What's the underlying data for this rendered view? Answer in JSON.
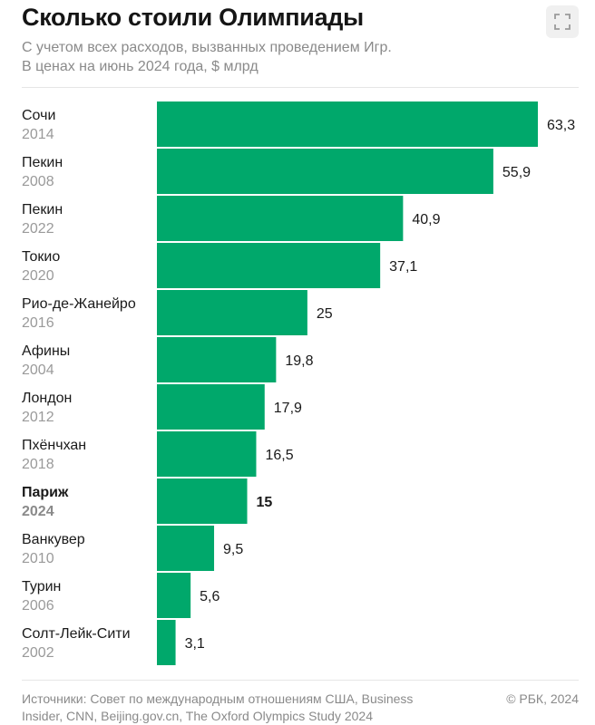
{
  "header": {
    "title": "Сколько стоили Олимпиады",
    "subtitle_line1": "С учетом всех расходов, вызванных проведением Игр.",
    "subtitle_line2": "В ценах на июнь 2024 года, $ млрд",
    "expand_icon": "expand-icon"
  },
  "chart_data": {
    "type": "bar",
    "orientation": "horizontal",
    "categories": [
      {
        "city": "Сочи",
        "year": "2014"
      },
      {
        "city": "Пекин",
        "year": "2008"
      },
      {
        "city": "Пекин",
        "year": "2022"
      },
      {
        "city": "Токио",
        "year": "2020"
      },
      {
        "city": "Рио-де-Жанейро",
        "year": "2016"
      },
      {
        "city": "Афины",
        "year": "2004"
      },
      {
        "city": "Лондон",
        "year": "2012"
      },
      {
        "city": "Пхёнчхан",
        "year": "2018"
      },
      {
        "city": "Париж",
        "year": "2024",
        "highlight": true
      },
      {
        "city": "Ванкувер",
        "year": "2010"
      },
      {
        "city": "Турин",
        "year": "2006"
      },
      {
        "city": "Солт-Лейк-Сити",
        "year": "2002"
      }
    ],
    "values": [
      63.3,
      55.9,
      40.9,
      37.1,
      25,
      19.8,
      17.9,
      16.5,
      15,
      9.5,
      5.6,
      3.1
    ],
    "value_labels": [
      "63,3",
      "55,9",
      "40,9",
      "37,1",
      "25",
      "19,8",
      "17,9",
      "16,5",
      "15",
      "9,5",
      "5,6",
      "3,1"
    ],
    "xlim": [
      0,
      63.3
    ],
    "bar_color": "#00a86b",
    "grid": false,
    "legend": "none"
  },
  "footer": {
    "source_line1": "Источники: Совет по международным отношениям США,  Business",
    "source_line2": "Insider, CNN, Beijing.gov.cn, The Oxford Olympics Study 2024",
    "copyright": "© РБК, 2024"
  }
}
